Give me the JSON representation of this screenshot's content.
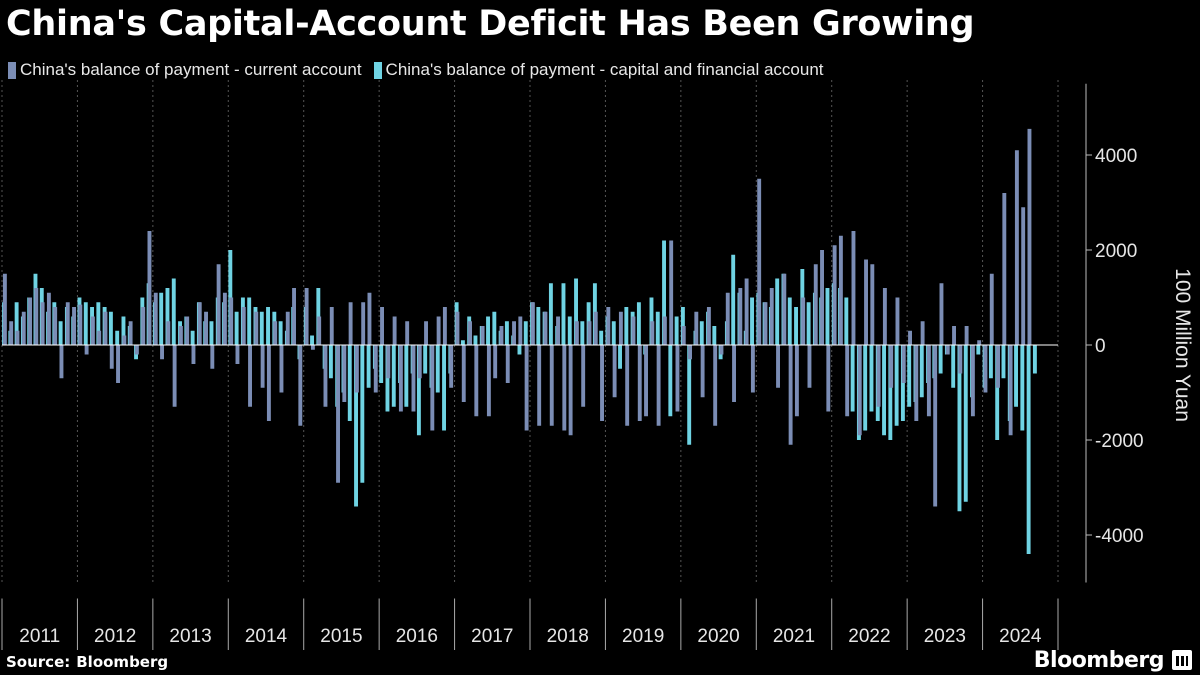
{
  "title": "China's Capital-Account Deficit Has Been Growing",
  "legend": [
    {
      "label": "China's balance of payment - current account",
      "color": "#7b8db5"
    },
    {
      "label": "China's balance of payment - capital and financial account",
      "color": "#6fd3e3"
    }
  ],
  "source": {
    "label": "Source:",
    "name": "Bloomberg"
  },
  "brand": "Bloomberg",
  "chart_data": {
    "type": "bar",
    "frequency": "monthly",
    "x_start": "2011-01",
    "x_end": "2024-12",
    "year_labels": [
      "2011",
      "2012",
      "2013",
      "2014",
      "2015",
      "2016",
      "2017",
      "2018",
      "2019",
      "2020",
      "2021",
      "2022",
      "2023",
      "2024"
    ],
    "ylabel": "100 Million Yuan",
    "ylim": [
      -5000,
      5500
    ],
    "yticks": [
      4000,
      2000,
      0,
      -2000,
      -4000
    ],
    "ytick_labels": [
      "4000",
      "2000",
      "0",
      "-2000",
      "-4000"
    ],
    "grid": "vertical dashed at year boundaries",
    "series": [
      {
        "name": "China's balance of payment - current account",
        "color": "#7b8db5",
        "values": [
          1500,
          500,
          300,
          700,
          1000,
          1200,
          900,
          1100,
          800,
          -700,
          900,
          800,
          850,
          -200,
          600,
          300,
          700,
          -500,
          -800,
          200,
          500,
          -200,
          800,
          2400,
          1100,
          -300,
          500,
          -1300,
          400,
          600,
          -400,
          900,
          700,
          -500,
          1700,
          1100,
          1000,
          -400,
          800,
          -1300,
          700,
          -900,
          -1600,
          500,
          -1000,
          700,
          1200,
          -1700,
          1200,
          -100,
          600,
          -1300,
          800,
          -2900,
          -1200,
          900,
          -1000,
          900,
          1100,
          -1000,
          800,
          -700,
          600,
          -1400,
          500,
          -1400,
          -700,
          500,
          -1800,
          600,
          800,
          -900,
          700,
          -1200,
          500,
          -1500,
          400,
          -1500,
          -700,
          400,
          -800,
          500,
          600,
          -1800,
          900,
          -1700,
          700,
          -1700,
          600,
          -1800,
          -1900,
          500,
          -1300,
          500,
          700,
          -1600,
          800,
          -1100,
          700,
          -1700,
          600,
          -1600,
          -1500,
          500,
          -1700,
          600,
          2200,
          -1400,
          400,
          -300,
          700,
          -1100,
          800,
          -1700,
          -200,
          1100,
          -1200,
          1200,
          1400,
          -1000,
          3500,
          900,
          1200,
          -900,
          1500,
          -2100,
          -1500,
          1000,
          -900,
          1700,
          2000,
          -1400,
          2100,
          2300,
          -1500,
          2400,
          -1900,
          1800,
          1700,
          -1300,
          1200,
          -900,
          1000,
          -800,
          300,
          -1600,
          500,
          -1500,
          -3400,
          1300,
          -200,
          400,
          -600,
          400,
          -1500,
          100,
          -1000,
          1500,
          -900,
          3200,
          -1900,
          4100,
          2900,
          4550,
          0,
          0,
          0,
          0
        ]
      },
      {
        "name": "China's balance of payment - capital and financial account",
        "color": "#6fd3e3",
        "values": [
          900,
          300,
          900,
          600,
          1000,
          1500,
          1200,
          700,
          900,
          500,
          800,
          600,
          1000,
          900,
          800,
          900,
          800,
          700,
          300,
          600,
          400,
          -300,
          1000,
          1300,
          900,
          1100,
          1200,
          1400,
          500,
          600,
          300,
          900,
          500,
          500,
          1000,
          900,
          2000,
          700,
          1000,
          1000,
          800,
          700,
          800,
          700,
          500,
          300,
          800,
          -300,
          800,
          200,
          1200,
          -500,
          -700,
          -1300,
          -1000,
          -1600,
          -3400,
          -2900,
          -900,
          -500,
          -800,
          -1400,
          -1300,
          -800,
          -1300,
          -600,
          -1900,
          -600,
          -900,
          -1000,
          -1800,
          -600,
          900,
          100,
          600,
          200,
          400,
          600,
          700,
          300,
          500,
          200,
          -200,
          500,
          900,
          800,
          700,
          1300,
          400,
          1300,
          600,
          1400,
          500,
          900,
          1300,
          300,
          600,
          500,
          -500,
          800,
          700,
          900,
          -200,
          1000,
          700,
          2200,
          -1500,
          600,
          800,
          -2100,
          300,
          500,
          700,
          400,
          -300,
          500,
          1900,
          1100,
          300,
          1000,
          1100,
          900,
          800,
          1400,
          1500,
          1000,
          800,
          1600,
          900,
          1100,
          1000,
          1200,
          1300,
          1200,
          1000,
          -1400,
          -2000,
          -1800,
          -1400,
          -1600,
          -1900,
          -2000,
          -1700,
          -1600,
          -1300,
          -1200,
          -1100,
          -800,
          -700,
          -600,
          -200,
          -900,
          -3500,
          -3300,
          -1100,
          -200,
          -900,
          -700,
          -2000,
          -700,
          -1600,
          -1300,
          -1800,
          -4400,
          -600,
          0,
          0,
          0
        ]
      }
    ]
  }
}
